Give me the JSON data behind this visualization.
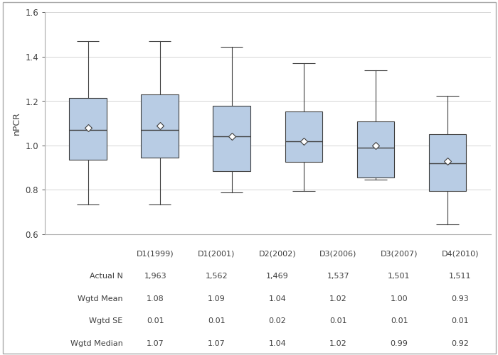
{
  "categories": [
    "D1(1999)",
    "D1(2001)",
    "D2(2002)",
    "D3(2006)",
    "D3(2007)",
    "D4(2010)"
  ],
  "boxes": [
    {
      "q1": 0.935,
      "median": 1.07,
      "q3": 1.215,
      "whisker_low": 0.735,
      "whisker_high": 1.47,
      "mean": 1.08
    },
    {
      "q1": 0.945,
      "median": 1.07,
      "q3": 1.23,
      "whisker_low": 0.735,
      "whisker_high": 1.47,
      "mean": 1.09
    },
    {
      "q1": 0.885,
      "median": 1.04,
      "q3": 1.18,
      "whisker_low": 0.79,
      "whisker_high": 1.445,
      "mean": 1.04
    },
    {
      "q1": 0.925,
      "median": 1.02,
      "q3": 1.155,
      "whisker_low": 0.795,
      "whisker_high": 1.37,
      "mean": 1.02
    },
    {
      "q1": 0.855,
      "median": 0.99,
      "q3": 1.11,
      "whisker_low": 0.845,
      "whisker_high": 1.34,
      "mean": 1.0
    },
    {
      "q1": 0.795,
      "median": 0.92,
      "q3": 1.05,
      "whisker_low": 0.645,
      "whisker_high": 1.225,
      "mean": 0.93
    }
  ],
  "table_rows": [
    {
      "label": "Actual N",
      "values": [
        "1,963",
        "1,562",
        "1,469",
        "1,537",
        "1,501",
        "1,511"
      ]
    },
    {
      "label": "Wgtd Mean",
      "values": [
        "1.08",
        "1.09",
        "1.04",
        "1.02",
        "1.00",
        "0.93"
      ]
    },
    {
      "label": "Wgtd SE",
      "values": [
        "0.01",
        "0.01",
        "0.02",
        "0.01",
        "0.01",
        "0.01"
      ]
    },
    {
      "label": "Wgtd Median",
      "values": [
        "1.07",
        "1.07",
        "1.04",
        "1.02",
        "0.99",
        "0.92"
      ]
    }
  ],
  "ylabel": "nPCR",
  "ylim": [
    0.6,
    1.6
  ],
  "yticks": [
    0.6,
    0.8,
    1.0,
    1.2,
    1.4,
    1.6
  ],
  "box_color": "#b8cce4",
  "box_edge_color": "#3f3f3f",
  "whisker_color": "#3f3f3f",
  "median_color": "#3f3f3f",
  "mean_marker_facecolor": "#ffffff",
  "mean_marker_edgecolor": "#3f3f3f",
  "grid_color": "#cccccc",
  "bg_color": "#ffffff",
  "plot_bg_color": "#ffffff",
  "border_color": "#aaaaaa",
  "tick_color": "#3f3f3f",
  "label_color": "#3f3f3f"
}
